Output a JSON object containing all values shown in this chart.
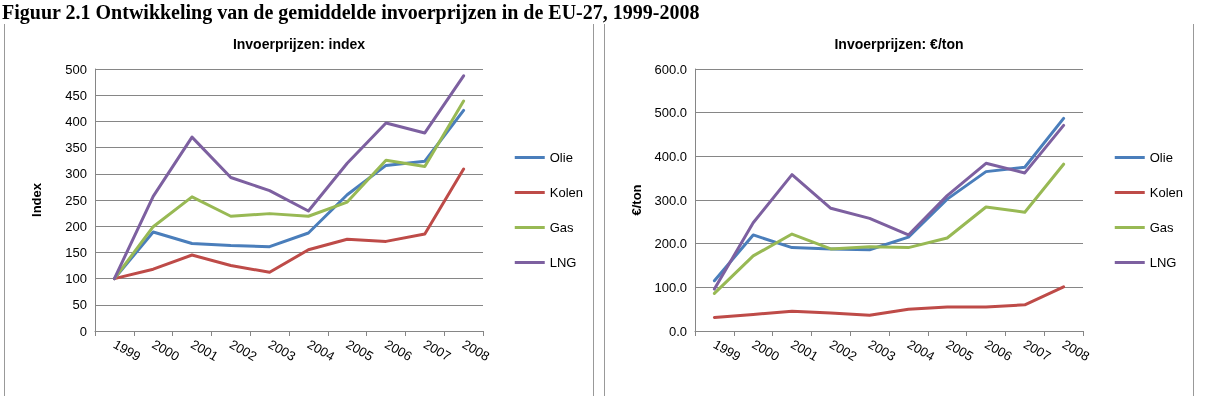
{
  "chart_data": [
    {
      "type": "line",
      "title": "Invoerprijzen: index",
      "ylabel": "Index",
      "annotations": [
        "Figuur 2.1 Ontwikkeling van de gemiddelde invoerprijzen in de EU-27, 1999-2008"
      ],
      "categories": [
        "1999",
        "2000",
        "2001",
        "2002",
        "2003",
        "2004",
        "2005",
        "2006",
        "2007",
        "2008"
      ],
      "series": [
        {
          "name": "Olie",
          "color": "#4a7ebb",
          "values": [
            100,
            189,
            167,
            163,
            161,
            187,
            260,
            316,
            324,
            421
          ]
        },
        {
          "name": "Kolen",
          "color": "#be4b48",
          "values": [
            100,
            118,
            145,
            125,
            112,
            155,
            175,
            171,
            185,
            309
          ]
        },
        {
          "name": "Gas",
          "color": "#98b954",
          "values": [
            100,
            199,
            256,
            219,
            224,
            219,
            246,
            326,
            314,
            439
          ]
        },
        {
          "name": "LNG",
          "color": "#7d60a0",
          "values": [
            100,
            257,
            370,
            293,
            268,
            229,
            320,
            397,
            378,
            487
          ]
        }
      ],
      "ylim": [
        0,
        500
      ],
      "yticks": [
        0,
        50,
        100,
        150,
        200,
        250,
        300,
        350,
        400,
        450,
        500
      ],
      "grid": "y",
      "legend": "right",
      "marker": "none"
    },
    {
      "type": "line",
      "title": "Invoerprijzen: €/ton",
      "ylabel": "€/ton",
      "categories": [
        "1999",
        "2000",
        "2001",
        "2002",
        "2003",
        "2004",
        "2005",
        "2006",
        "2007",
        "2008"
      ],
      "series": [
        {
          "name": "Olie",
          "color": "#4a7ebb",
          "values": [
            115,
            220,
            191,
            188,
            186,
            215,
            302,
            365,
            375,
            487
          ]
        },
        {
          "name": "Kolen",
          "color": "#be4b48",
          "values": [
            31,
            38,
            45,
            41,
            36,
            50,
            55,
            55,
            60,
            101
          ]
        },
        {
          "name": "Gas",
          "color": "#98b954",
          "values": [
            86,
            172,
            222,
            188,
            193,
            191,
            213,
            284,
            272,
            382
          ]
        },
        {
          "name": "LNG",
          "color": "#7d60a0",
          "values": [
            96,
            248,
            358,
            281,
            258,
            220,
            310,
            384,
            362,
            471
          ]
        }
      ],
      "ylim": [
        0,
        600
      ],
      "yticks": [
        {
          "value": 0,
          "label": "0.0"
        },
        {
          "value": 100,
          "label": "100.0"
        },
        {
          "value": 200,
          "label": "200.0"
        },
        {
          "value": 300,
          "label": "300.0"
        },
        {
          "value": 400,
          "label": "400.0"
        },
        {
          "value": 500,
          "label": "500.0"
        },
        {
          "value": 600,
          "label": "600.0"
        }
      ],
      "grid": "y",
      "legend": "right",
      "marker": "none"
    }
  ]
}
